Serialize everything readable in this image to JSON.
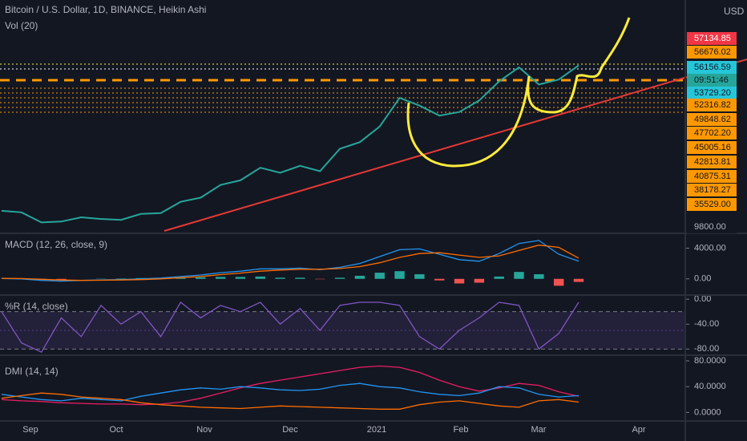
{
  "chart_data": [
    {
      "type": "line",
      "title": "Bitcoin / U.S. Dollar, 1D, BINANCE, Heikin Ashi",
      "subtitle": "Vol (20)",
      "currency": "USD",
      "log_scale": true,
      "ylim": [
        9230,
        102000
      ],
      "series": [
        {
          "color": "#26a69a",
          "values": [
            11700,
            11500,
            10300,
            10400,
            10900,
            10700,
            10600,
            11300,
            11400,
            12900,
            13500,
            15500,
            16300,
            18700,
            17700,
            19100,
            18000,
            23000,
            24700,
            29300,
            40000,
            36800,
            33000,
            34300,
            38900,
            47900,
            55800,
            46300,
            48900,
            57000
          ]
        }
      ],
      "price_labels": [
        {
          "label": "57134.85",
          "color": "#f23645",
          "text_color": "#ffffff"
        },
        {
          "label": "56676.02",
          "color": "#ff9800",
          "text_color": "#131722"
        },
        {
          "label": "56156.59",
          "color": "#26c6da",
          "text_color": "#131722"
        },
        {
          "label": "09:51:46",
          "color": "#26a69a",
          "text_color": "#131722"
        },
        {
          "label": "53729.20",
          "color": "#26c6da",
          "text_color": "#131722"
        },
        {
          "label": "52316.82",
          "color": "#ff9800",
          "text_color": "#131722"
        },
        {
          "label": "49848.62",
          "color": "#ff9800",
          "text_color": "#131722"
        },
        {
          "label": "47702.20",
          "color": "#ff9800",
          "text_color": "#131722"
        },
        {
          "label": "45005.16",
          "color": "#ff9800",
          "text_color": "#131722"
        },
        {
          "label": "42813.81",
          "color": "#ff9800",
          "text_color": "#131722"
        },
        {
          "label": "40875.31",
          "color": "#ff9800",
          "text_color": "#131722"
        },
        {
          "label": "38178.27",
          "color": "#ff9800",
          "text_color": "#131722"
        },
        {
          "label": "35529.00",
          "color": "#ff9800",
          "text_color": "#131722"
        },
        {
          "label": "9800.00",
          "color": "#131722",
          "text_color": "#b2b5be"
        }
      ],
      "x_labels": [
        "Sep",
        "Oct",
        "Nov",
        "Dec",
        "2021",
        "Feb",
        "Mar",
        "Apr"
      ]
    },
    {
      "type": "line",
      "title": "MACD (12, 26, close, 9)",
      "ylim": [
        -1800,
        5200
      ],
      "yticks": [
        {
          "value": 4000,
          "label": "4000.00"
        },
        {
          "value": 0,
          "label": "0.00"
        }
      ],
      "series": [
        {
          "color": "#2196f3",
          "values": [
            50,
            0,
            -200,
            -300,
            -200,
            -150,
            -100,
            0,
            100,
            300,
            500,
            800,
            1000,
            1300,
            1300,
            1400,
            1200,
            1500,
            2000,
            2900,
            3800,
            3900,
            3200,
            2500,
            2300,
            3300,
            4600,
            5000,
            3200,
            2300
          ]
        },
        {
          "color": "#ff6d00",
          "values": [
            60,
            40,
            -50,
            -150,
            -200,
            -180,
            -150,
            -100,
            0,
            150,
            300,
            550,
            750,
            1000,
            1150,
            1250,
            1250,
            1350,
            1600,
            2100,
            2800,
            3300,
            3400,
            3100,
            2800,
            3000,
            3700,
            4400,
            4100,
            2700
          ]
        }
      ],
      "histogram": [
        -10,
        -40,
        -150,
        -150,
        0,
        30,
        50,
        100,
        100,
        150,
        200,
        250,
        250,
        300,
        150,
        150,
        -50,
        150,
        400,
        800,
        1000,
        600,
        -200,
        -600,
        -500,
        300,
        900,
        600,
        -900,
        -400
      ],
      "positive_color": "#26a69a",
      "negative_color": "#ef5350"
    },
    {
      "type": "line",
      "title": "%R (14, close)",
      "ylim": [
        -86,
        4
      ],
      "yticks": [
        {
          "value": 0,
          "label": "0.00"
        },
        {
          "value": -40,
          "label": "-40.00"
        },
        {
          "value": -80,
          "label": "-80.00"
        }
      ],
      "band": [
        -80,
        -20
      ],
      "midline": -50,
      "band_color": "#7e57c2",
      "series": [
        {
          "color": "#7e57c2",
          "values": [
            -20,
            -70,
            -85,
            -30,
            -60,
            -10,
            -40,
            -20,
            -60,
            -5,
            -30,
            -10,
            -20,
            -5,
            -40,
            -15,
            -50,
            -10,
            -5,
            -5,
            -10,
            -60,
            -80,
            -50,
            -30,
            -5,
            -10,
            -80,
            -55,
            -5
          ]
        }
      ]
    },
    {
      "type": "line",
      "title": "DMI (14, 14)",
      "ylim": [
        -12,
        85
      ],
      "yticks": [
        {
          "value": 80,
          "label": "80.0000"
        },
        {
          "value": 40,
          "label": "40.0000"
        },
        {
          "value": 0,
          "label": "0.0000"
        }
      ],
      "series": [
        {
          "color": "#e91e63",
          "values": [
            20,
            18,
            17,
            15,
            14,
            13,
            13,
            12,
            13,
            16,
            22,
            30,
            38,
            45,
            50,
            55,
            60,
            65,
            70,
            72,
            70,
            62,
            50,
            40,
            33,
            38,
            45,
            42,
            32,
            25
          ]
        },
        {
          "color": "#2196f3",
          "values": [
            28,
            24,
            20,
            18,
            22,
            20,
            18,
            25,
            30,
            35,
            38,
            36,
            40,
            38,
            35,
            34,
            36,
            42,
            45,
            40,
            38,
            32,
            28,
            26,
            30,
            40,
            38,
            28,
            24,
            26
          ]
        },
        {
          "color": "#ff6d00",
          "values": [
            22,
            26,
            30,
            28,
            24,
            22,
            20,
            15,
            12,
            10,
            8,
            7,
            6,
            8,
            10,
            9,
            8,
            7,
            6,
            5,
            5,
            12,
            16,
            18,
            14,
            10,
            8,
            18,
            20,
            16
          ]
        }
      ]
    }
  ]
}
